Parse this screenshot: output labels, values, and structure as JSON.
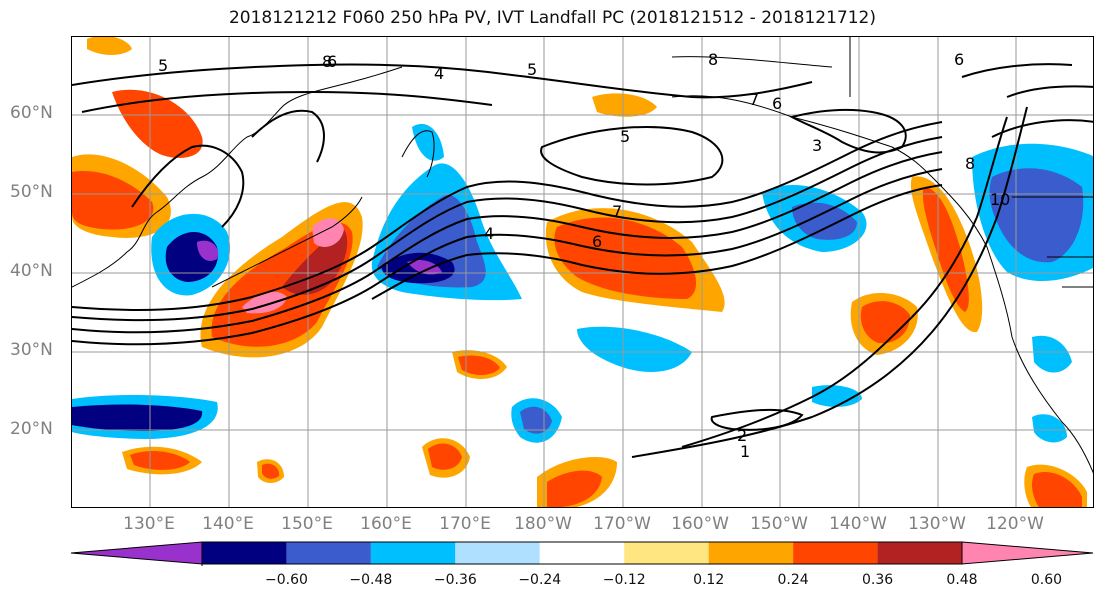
{
  "title": "2018121212 F060 250 hPa PV, IVT Landfall PC (2018121512 - 2018121712)",
  "lat_labels": [
    "60°N",
    "50°N",
    "40°N",
    "30°N",
    "20°N"
  ],
  "lon_labels": [
    "130°E",
    "140°E",
    "150°E",
    "160°E",
    "170°E",
    "180°W",
    "170°W",
    "160°W",
    "150°W",
    "140°W",
    "130°W",
    "120°W"
  ],
  "colorbar": {
    "ticks": [
      "-0.60",
      "-0.48",
      "-0.36",
      "-0.24",
      "-0.12",
      "0.12",
      "0.24",
      "0.36",
      "0.48",
      "0.60"
    ],
    "colors": [
      "#9932cc",
      "#000080",
      "#3a5ccc",
      "#00bfff",
      "#b0e0ff",
      "#ffffff",
      "#ffe680",
      "#ffa500",
      "#ff4500",
      "#b22222",
      "#ff85b0"
    ]
  },
  "contour_labels": [
    "5",
    "6",
    "4",
    "5",
    "8",
    "7",
    "6",
    "6",
    "8",
    "5",
    "3",
    "7",
    "4",
    "6",
    "8",
    "10",
    "2",
    "1"
  ]
}
